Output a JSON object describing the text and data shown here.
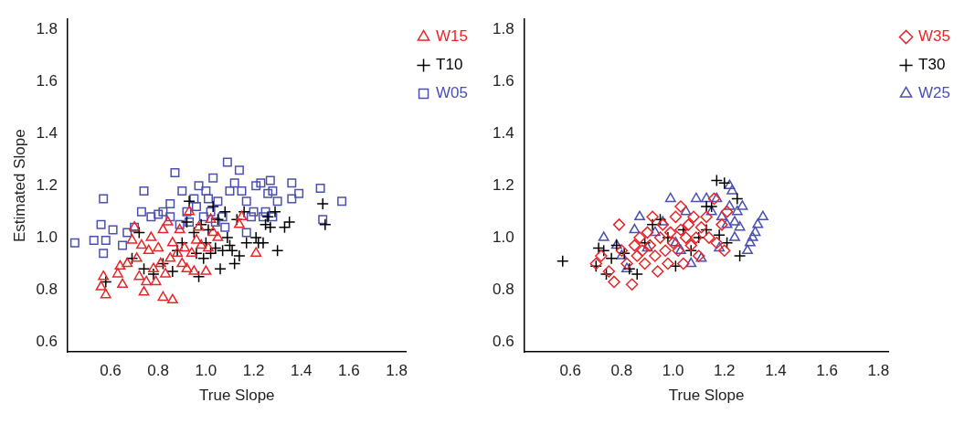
{
  "chart_data": [
    {
      "type": "scatter",
      "xlabel": "True Slope",
      "ylabel": "Estimated Slope",
      "xlim": [
        0.42,
        1.84
      ],
      "ylim": [
        0.56,
        1.84
      ],
      "xticks": [
        0.6,
        0.8,
        {
          "value": 1,
          "label": "1.0"
        },
        1.2,
        1.4,
        1.6,
        1.8
      ],
      "yticks": [
        0.6,
        0.8,
        {
          "value": 1,
          "label": "1.0"
        },
        1.2,
        1.4,
        1.6,
        1.8
      ],
      "legend": "top right",
      "series": [
        {
          "name": "W15",
          "color": "#e8262a",
          "marker": "triangle",
          "x": [
            0.56,
            0.57,
            0.58,
            0.63,
            0.64,
            0.65,
            0.67,
            0.69,
            0.7,
            0.71,
            0.72,
            0.73,
            0.74,
            0.75,
            0.76,
            0.77,
            0.78,
            0.79,
            0.8,
            0.81,
            0.82,
            0.82,
            0.83,
            0.84,
            0.85,
            0.86,
            0.86,
            0.88,
            0.89,
            0.9,
            0.91,
            0.92,
            0.93,
            0.94,
            0.95,
            0.96,
            0.97,
            0.98,
            1.0,
            1.01,
            1.02,
            1.03,
            1.05,
            1.14,
            1.15,
            1.21
          ],
          "values": [
            0.81,
            0.85,
            0.78,
            0.86,
            0.89,
            0.82,
            0.9,
            0.99,
            1.04,
            0.92,
            0.85,
            0.97,
            0.79,
            0.83,
            0.95,
            1.0,
            0.88,
            0.83,
            0.96,
            0.9,
            0.77,
            1.03,
            0.86,
            1.06,
            0.92,
            0.76,
            0.98,
            0.94,
            1.03,
            0.9,
            0.96,
            0.88,
            1.1,
            0.94,
            0.87,
            0.99,
            1.04,
            0.97,
            0.87,
            0.96,
            1.07,
            1.02,
            1.0,
            1.05,
            1.08,
            0.94
          ]
        },
        {
          "name": "T10",
          "color": "#000000",
          "marker": "cross",
          "x": [
            0.58,
            0.69,
            0.72,
            0.74,
            0.78,
            0.82,
            0.86,
            0.88,
            0.9,
            0.92,
            0.93,
            0.95,
            0.96,
            0.97,
            0.98,
            0.99,
            1.0,
            1.01,
            1.02,
            1.03,
            1.04,
            1.05,
            1.06,
            1.07,
            1.08,
            1.09,
            1.1,
            1.11,
            1.12,
            1.13,
            1.14,
            1.16,
            1.17,
            1.21,
            1.22,
            1.24,
            1.25,
            1.26,
            1.27,
            1.29,
            1.3,
            1.33,
            1.35,
            1.49,
            1.5
          ],
          "values": [
            0.83,
            0.92,
            1.02,
            0.88,
            0.86,
            0.9,
            0.87,
            0.95,
            0.98,
            1.06,
            1.14,
            1.02,
            0.94,
            0.85,
            1.05,
            0.92,
            0.98,
            1.03,
            0.94,
            1.12,
            0.96,
            1.07,
            0.88,
            0.95,
            1.1,
            1.0,
            0.97,
            0.95,
            0.9,
            1.07,
            0.93,
            1.1,
            0.98,
            1.0,
            0.98,
            0.98,
            1.05,
            1.08,
            1.04,
            1.1,
            0.95,
            1.04,
            1.06,
            1.13,
            1.05
          ]
        },
        {
          "name": "W05",
          "color": "#4a4fb0",
          "marker": "square",
          "x": [
            0.45,
            0.53,
            0.56,
            0.57,
            0.57,
            0.58,
            0.61,
            0.65,
            0.67,
            0.7,
            0.73,
            0.74,
            0.77,
            0.8,
            0.82,
            0.85,
            0.85,
            0.87,
            0.89,
            0.9,
            0.92,
            0.93,
            0.95,
            0.96,
            0.97,
            0.99,
            1.0,
            1.01,
            1.02,
            1.03,
            1.04,
            1.05,
            1.07,
            1.08,
            1.09,
            1.1,
            1.12,
            1.14,
            1.15,
            1.17,
            1.17,
            1.19,
            1.2,
            1.21,
            1.23,
            1.24,
            1.25,
            1.26,
            1.27,
            1.28,
            1.28,
            1.3,
            1.36,
            1.36,
            1.39,
            1.48,
            1.49,
            1.57
          ],
          "values": [
            0.98,
            0.99,
            1.05,
            0.94,
            1.15,
            0.99,
            1.03,
            0.97,
            1.02,
            1.04,
            1.1,
            1.18,
            1.08,
            1.09,
            1.1,
            1.08,
            1.13,
            1.25,
            1.05,
            1.18,
            1.1,
            1.06,
            1.15,
            1.12,
            1.2,
            1.08,
            1.18,
            1.15,
            1.1,
            1.23,
            1.06,
            1.14,
            1.08,
            1.04,
            1.29,
            1.18,
            1.21,
            1.26,
            1.18,
            1.14,
            1.02,
            1.08,
            1.1,
            1.2,
            1.21,
            1.08,
            1.1,
            1.17,
            1.22,
            1.18,
            1.08,
            1.14,
            1.21,
            1.15,
            1.17,
            1.19,
            1.07,
            1.14
          ]
        }
      ]
    },
    {
      "type": "scatter",
      "xlabel": "True Slope",
      "xlim": [
        0.42,
        1.84
      ],
      "ylim": [
        0.56,
        1.84
      ],
      "xticks": [
        0.6,
        0.8,
        {
          "value": 1,
          "label": "1.0"
        },
        1.2,
        1.4,
        1.6,
        1.8
      ],
      "yticks": [
        0.6,
        0.8,
        {
          "value": 1,
          "label": "1.0"
        },
        1.2,
        1.4,
        1.6,
        1.8
      ],
      "legend": "top right",
      "series": [
        {
          "name": "W35",
          "color": "#e8262a",
          "marker": "diamond",
          "x": [
            0.7,
            0.72,
            0.75,
            0.77,
            0.79,
            0.8,
            0.82,
            0.84,
            0.85,
            0.86,
            0.87,
            0.88,
            0.89,
            0.9,
            0.91,
            0.92,
            0.93,
            0.94,
            0.95,
            0.96,
            0.97,
            0.98,
            0.99,
            1.0,
            1.01,
            1.02,
            1.03,
            1.03,
            1.04,
            1.05,
            1.06,
            1.07,
            1.08,
            1.09,
            1.1,
            1.11,
            1.13,
            1.14,
            1.16,
            1.17,
            1.19,
            1.2,
            1.21
          ],
          "values": [
            0.9,
            0.93,
            0.87,
            0.83,
            1.05,
            0.95,
            0.9,
            0.82,
            0.97,
            0.93,
            1.0,
            0.95,
            0.9,
            1.02,
            0.97,
            1.08,
            0.93,
            0.87,
            1.0,
            1.05,
            0.95,
            0.9,
            1.02,
            0.98,
            1.08,
            0.95,
            1.12,
            1.03,
            0.9,
            1.0,
            1.05,
            0.97,
            1.08,
            1.0,
            0.93,
            1.04,
            1.08,
            1.0,
            1.15,
            0.98,
            1.05,
            0.95,
            1.1
          ]
        },
        {
          "name": "T30",
          "color": "#000000",
          "marker": "cross",
          "x": [
            0.57,
            0.7,
            0.71,
            0.73,
            0.74,
            0.76,
            0.78,
            0.81,
            0.83,
            0.86,
            0.89,
            0.92,
            0.95,
            0.98,
            1.01,
            1.04,
            1.07,
            1.1,
            1.13,
            1.13,
            1.15,
            1.17,
            1.18,
            1.2,
            1.21,
            1.25,
            1.26
          ],
          "values": [
            0.91,
            0.89,
            0.96,
            0.95,
            0.86,
            0.92,
            0.97,
            0.94,
            0.88,
            0.86,
            0.98,
            1.05,
            1.07,
            1.0,
            0.89,
            1.03,
            0.95,
            1.0,
            1.12,
            1.03,
            1.12,
            1.22,
            1.01,
            1.21,
            0.98,
            1.15,
            0.93
          ]
        },
        {
          "name": "W25",
          "color": "#4a4fb0",
          "marker": "triangle",
          "x": [
            0.73,
            0.78,
            0.8,
            0.82,
            0.85,
            0.87,
            0.9,
            0.93,
            0.96,
            0.99,
            1.01,
            1.03,
            1.05,
            1.07,
            1.09,
            1.11,
            1.13,
            1.15,
            1.17,
            1.18,
            1.19,
            1.21,
            1.22,
            1.22,
            1.23,
            1.24,
            1.24,
            1.25,
            1.26,
            1.27,
            1.29,
            1.3,
            1.31,
            1.32,
            1.33,
            1.35
          ],
          "values": [
            1.0,
            0.97,
            0.93,
            0.88,
            1.03,
            1.08,
            0.96,
            1.02,
            1.06,
            1.15,
            0.98,
            0.95,
            1.1,
            0.9,
            1.15,
            0.92,
            1.15,
            1.1,
            1.15,
            0.96,
            1.08,
            1.05,
            1.12,
            1.2,
            1.18,
            1.06,
            1.0,
            1.1,
            1.04,
            1.12,
            0.95,
            0.98,
            1.0,
            1.02,
            1.05,
            1.08
          ]
        }
      ]
    }
  ]
}
